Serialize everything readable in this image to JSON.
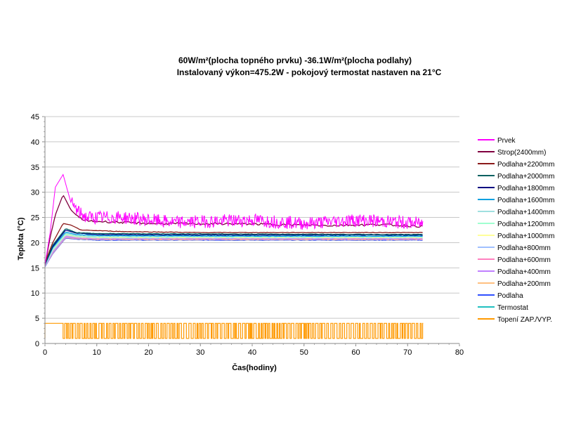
{
  "chart_data": {
    "type": "line",
    "title": "60W/m²(plocha topného prvku) -36.1W/m²(plocha podlahy)",
    "subtitle": "Instalovaný výkon=475.2W - pokojový termostat nastaven na 21°C",
    "xlabel": "Čas(hodiny)",
    "ylabel": "Teplota (°C)",
    "xlim": [
      0,
      80
    ],
    "ylim": [
      0,
      45
    ],
    "x_ticks": [
      "0",
      "10",
      "20",
      "30",
      "40",
      "50",
      "60",
      "70",
      "80"
    ],
    "y_ticks": [
      "0",
      "5",
      "10",
      "15",
      "20",
      "25",
      "30",
      "35",
      "40",
      "45"
    ],
    "grid": "horizontal",
    "legend_position": "right",
    "series": [
      {
        "name": "Prvek",
        "color": "#ff00ff",
        "kind": "prvek",
        "points": [
          [
            0,
            15.5
          ],
          [
            1,
            22
          ],
          [
            2,
            31
          ],
          [
            3.5,
            33.5
          ],
          [
            5,
            28
          ],
          [
            6.5,
            26
          ],
          [
            8,
            25
          ],
          [
            15,
            25
          ],
          [
            25,
            24
          ],
          [
            40,
            24.5
          ],
          [
            50,
            23.8
          ],
          [
            60,
            24.5
          ],
          [
            73,
            23.8
          ]
        ]
      },
      {
        "name": "Strop(2400mm)",
        "color": "#800040",
        "kind": "line",
        "points": [
          [
            0,
            15.5
          ],
          [
            1,
            21
          ],
          [
            2,
            25.5
          ],
          [
            3.5,
            29.5
          ],
          [
            5,
            26.5
          ],
          [
            6.5,
            25
          ],
          [
            8,
            24.3
          ],
          [
            20,
            23.8
          ],
          [
            40,
            23.7
          ],
          [
            55,
            23.4
          ],
          [
            65,
            23.6
          ],
          [
            73,
            23.2
          ]
        ]
      },
      {
        "name": "Podlaha+2200mm",
        "color": "#8b1a1a",
        "kind": "line",
        "points": [
          [
            0,
            16
          ],
          [
            1.5,
            20
          ],
          [
            3.5,
            23.8
          ],
          [
            5,
            23.5
          ],
          [
            7,
            22.5
          ],
          [
            15,
            22.2
          ],
          [
            30,
            22
          ],
          [
            50,
            22
          ],
          [
            73,
            22
          ]
        ]
      },
      {
        "name": "Podlaha+2000mm",
        "color": "#006060",
        "kind": "line",
        "points": [
          [
            0,
            15.8
          ],
          [
            1.5,
            19.5
          ],
          [
            4,
            22.8
          ],
          [
            6,
            22
          ],
          [
            10,
            21.8
          ],
          [
            40,
            21.7
          ],
          [
            73,
            21.6
          ]
        ]
      },
      {
        "name": "Podlaha+1800mm",
        "color": "#000080",
        "kind": "line",
        "points": [
          [
            0,
            15.7
          ],
          [
            1.5,
            19.2
          ],
          [
            4,
            22.5
          ],
          [
            6,
            21.9
          ],
          [
            10,
            21.6
          ],
          [
            40,
            21.5
          ],
          [
            73,
            21.5
          ]
        ]
      },
      {
        "name": "Podlaha+1600mm",
        "color": "#00a0e0",
        "kind": "line",
        "points": [
          [
            0,
            15.6
          ],
          [
            1.5,
            19
          ],
          [
            4,
            22.1
          ],
          [
            6,
            21.6
          ],
          [
            10,
            21.4
          ],
          [
            40,
            21.3
          ],
          [
            73,
            21.3
          ]
        ]
      },
      {
        "name": "Podlaha+1400mm",
        "color": "#a0e0e0",
        "kind": "line",
        "points": [
          [
            0,
            15.6
          ],
          [
            1.5,
            18.8
          ],
          [
            4,
            21.9
          ],
          [
            6,
            21.4
          ],
          [
            10,
            21.2
          ],
          [
            40,
            21.2
          ],
          [
            73,
            21.2
          ]
        ]
      },
      {
        "name": "Podlaha+1200mm",
        "color": "#a0ffd0",
        "kind": "line",
        "points": [
          [
            0,
            15.5
          ],
          [
            1.5,
            18.6
          ],
          [
            4,
            21.7
          ],
          [
            6,
            21.3
          ],
          [
            10,
            21.1
          ],
          [
            40,
            21.1
          ],
          [
            73,
            21.1
          ]
        ]
      },
      {
        "name": "Podlaha+1000mm",
        "color": "#ffff99",
        "kind": "line",
        "points": [
          [
            0,
            15.5
          ],
          [
            1.5,
            18.5
          ],
          [
            4,
            21.6
          ],
          [
            6,
            21.2
          ],
          [
            10,
            21.0
          ],
          [
            40,
            21.0
          ],
          [
            73,
            21.0
          ]
        ]
      },
      {
        "name": "Podlaha+800mm",
        "color": "#a0c0ff",
        "kind": "line",
        "points": [
          [
            0,
            15.4
          ],
          [
            1.5,
            18.3
          ],
          [
            4,
            21.4
          ],
          [
            6,
            21.1
          ],
          [
            10,
            20.9
          ],
          [
            40,
            20.9
          ],
          [
            73,
            20.9
          ]
        ]
      },
      {
        "name": "Podlaha+600mm",
        "color": "#ff80c0",
        "kind": "line",
        "points": [
          [
            0,
            15.4
          ],
          [
            1.5,
            18.2
          ],
          [
            4,
            21.3
          ],
          [
            6,
            21.0
          ],
          [
            10,
            20.8
          ],
          [
            40,
            20.8
          ],
          [
            73,
            20.8
          ]
        ]
      },
      {
        "name": "Podlaha+400mm",
        "color": "#c080ff",
        "kind": "line",
        "points": [
          [
            0,
            15.3
          ],
          [
            1.5,
            18
          ],
          [
            4,
            21.1
          ],
          [
            6,
            20.9
          ],
          [
            10,
            20.7
          ],
          [
            40,
            20.7
          ],
          [
            73,
            20.7
          ]
        ]
      },
      {
        "name": "Podlaha+200mm",
        "color": "#ffc080",
        "kind": "line",
        "points": [
          [
            0,
            15.3
          ],
          [
            1.5,
            17.9
          ],
          [
            4,
            21.0
          ],
          [
            6,
            20.8
          ],
          [
            10,
            20.6
          ],
          [
            40,
            20.6
          ],
          [
            73,
            20.6
          ]
        ]
      },
      {
        "name": "Podlaha",
        "color": "#3050ff",
        "kind": "line",
        "points": [
          [
            0,
            15.2
          ],
          [
            1.5,
            17.8
          ],
          [
            4,
            20.9
          ],
          [
            6,
            20.7
          ],
          [
            10,
            20.5
          ],
          [
            40,
            20.5
          ],
          [
            73,
            20.5
          ]
        ]
      },
      {
        "name": "Termostat",
        "color": "#20c0c0",
        "kind": "line",
        "points": [
          [
            0,
            15.5
          ],
          [
            1.5,
            18.7
          ],
          [
            4,
            21.8
          ],
          [
            6,
            21.3
          ],
          [
            10,
            21.1
          ],
          [
            40,
            21.1
          ],
          [
            73,
            21.1
          ]
        ]
      },
      {
        "name": "Topení ZAP./VYP.",
        "color": "#ff9900",
        "kind": "switch",
        "on_value": 4,
        "off_value": 1,
        "continuous_on_until": 3.5,
        "end": 73
      }
    ]
  }
}
